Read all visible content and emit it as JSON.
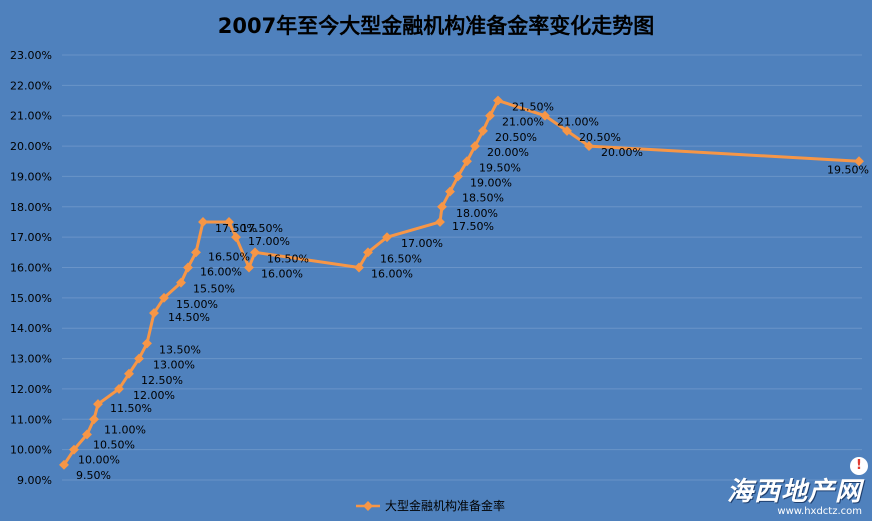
{
  "chart_data": {
    "type": "line",
    "title": "2007年至今大型金融机构准备金率变化走势图",
    "ylim": [
      9,
      23
    ],
    "yticks": [
      "9.00%",
      "10.00%",
      "11.00%",
      "12.00%",
      "13.00%",
      "14.00%",
      "15.00%",
      "16.00%",
      "17.00%",
      "18.00%",
      "19.00%",
      "20.00%",
      "21.00%",
      "22.00%",
      "23.00%"
    ],
    "grid": true,
    "legend": "bottom",
    "colors": {
      "line": "#f79646",
      "background": "#4f81bd",
      "grid": "#6a94c8"
    },
    "series": [
      {
        "name": "大型金融机构准备金率",
        "values": [
          9.5,
          10.0,
          10.5,
          11.0,
          11.5,
          12.0,
          12.5,
          13.0,
          13.5,
          14.5,
          15.0,
          15.5,
          16.0,
          16.5,
          17.5,
          17.5,
          17.0,
          16.0,
          16.5,
          16.0,
          16.5,
          17.0,
          17.5,
          18.0,
          18.5,
          19.0,
          19.5,
          20.0,
          20.5,
          21.0,
          21.5,
          21.0,
          20.5,
          20.0,
          19.5
        ],
        "labels": [
          "9.50%",
          "10.00%",
          "10.50%",
          "11.00%",
          "11.50%",
          "12.00%",
          "12.50%",
          "13.00%",
          "13.50%",
          "14.50%",
          "15.00%",
          "15.50%",
          "16.00%",
          "16.50%",
          "17.50%",
          "17.50%",
          "17.00%",
          "16.00%",
          "16.50%",
          "16.00%",
          "16.50%",
          "17.00%",
          "17.50%",
          "18.00%",
          "18.50%",
          "19.00%",
          "19.50%",
          "20.00%",
          "20.50%",
          "21.00%",
          "21.50%",
          "21.00%",
          "20.50%",
          "20.00%",
          "19.50%"
        ]
      }
    ]
  },
  "watermark": {
    "logo": "海西地产网",
    "url": "www.hxdctz.com",
    "badge": "!"
  }
}
